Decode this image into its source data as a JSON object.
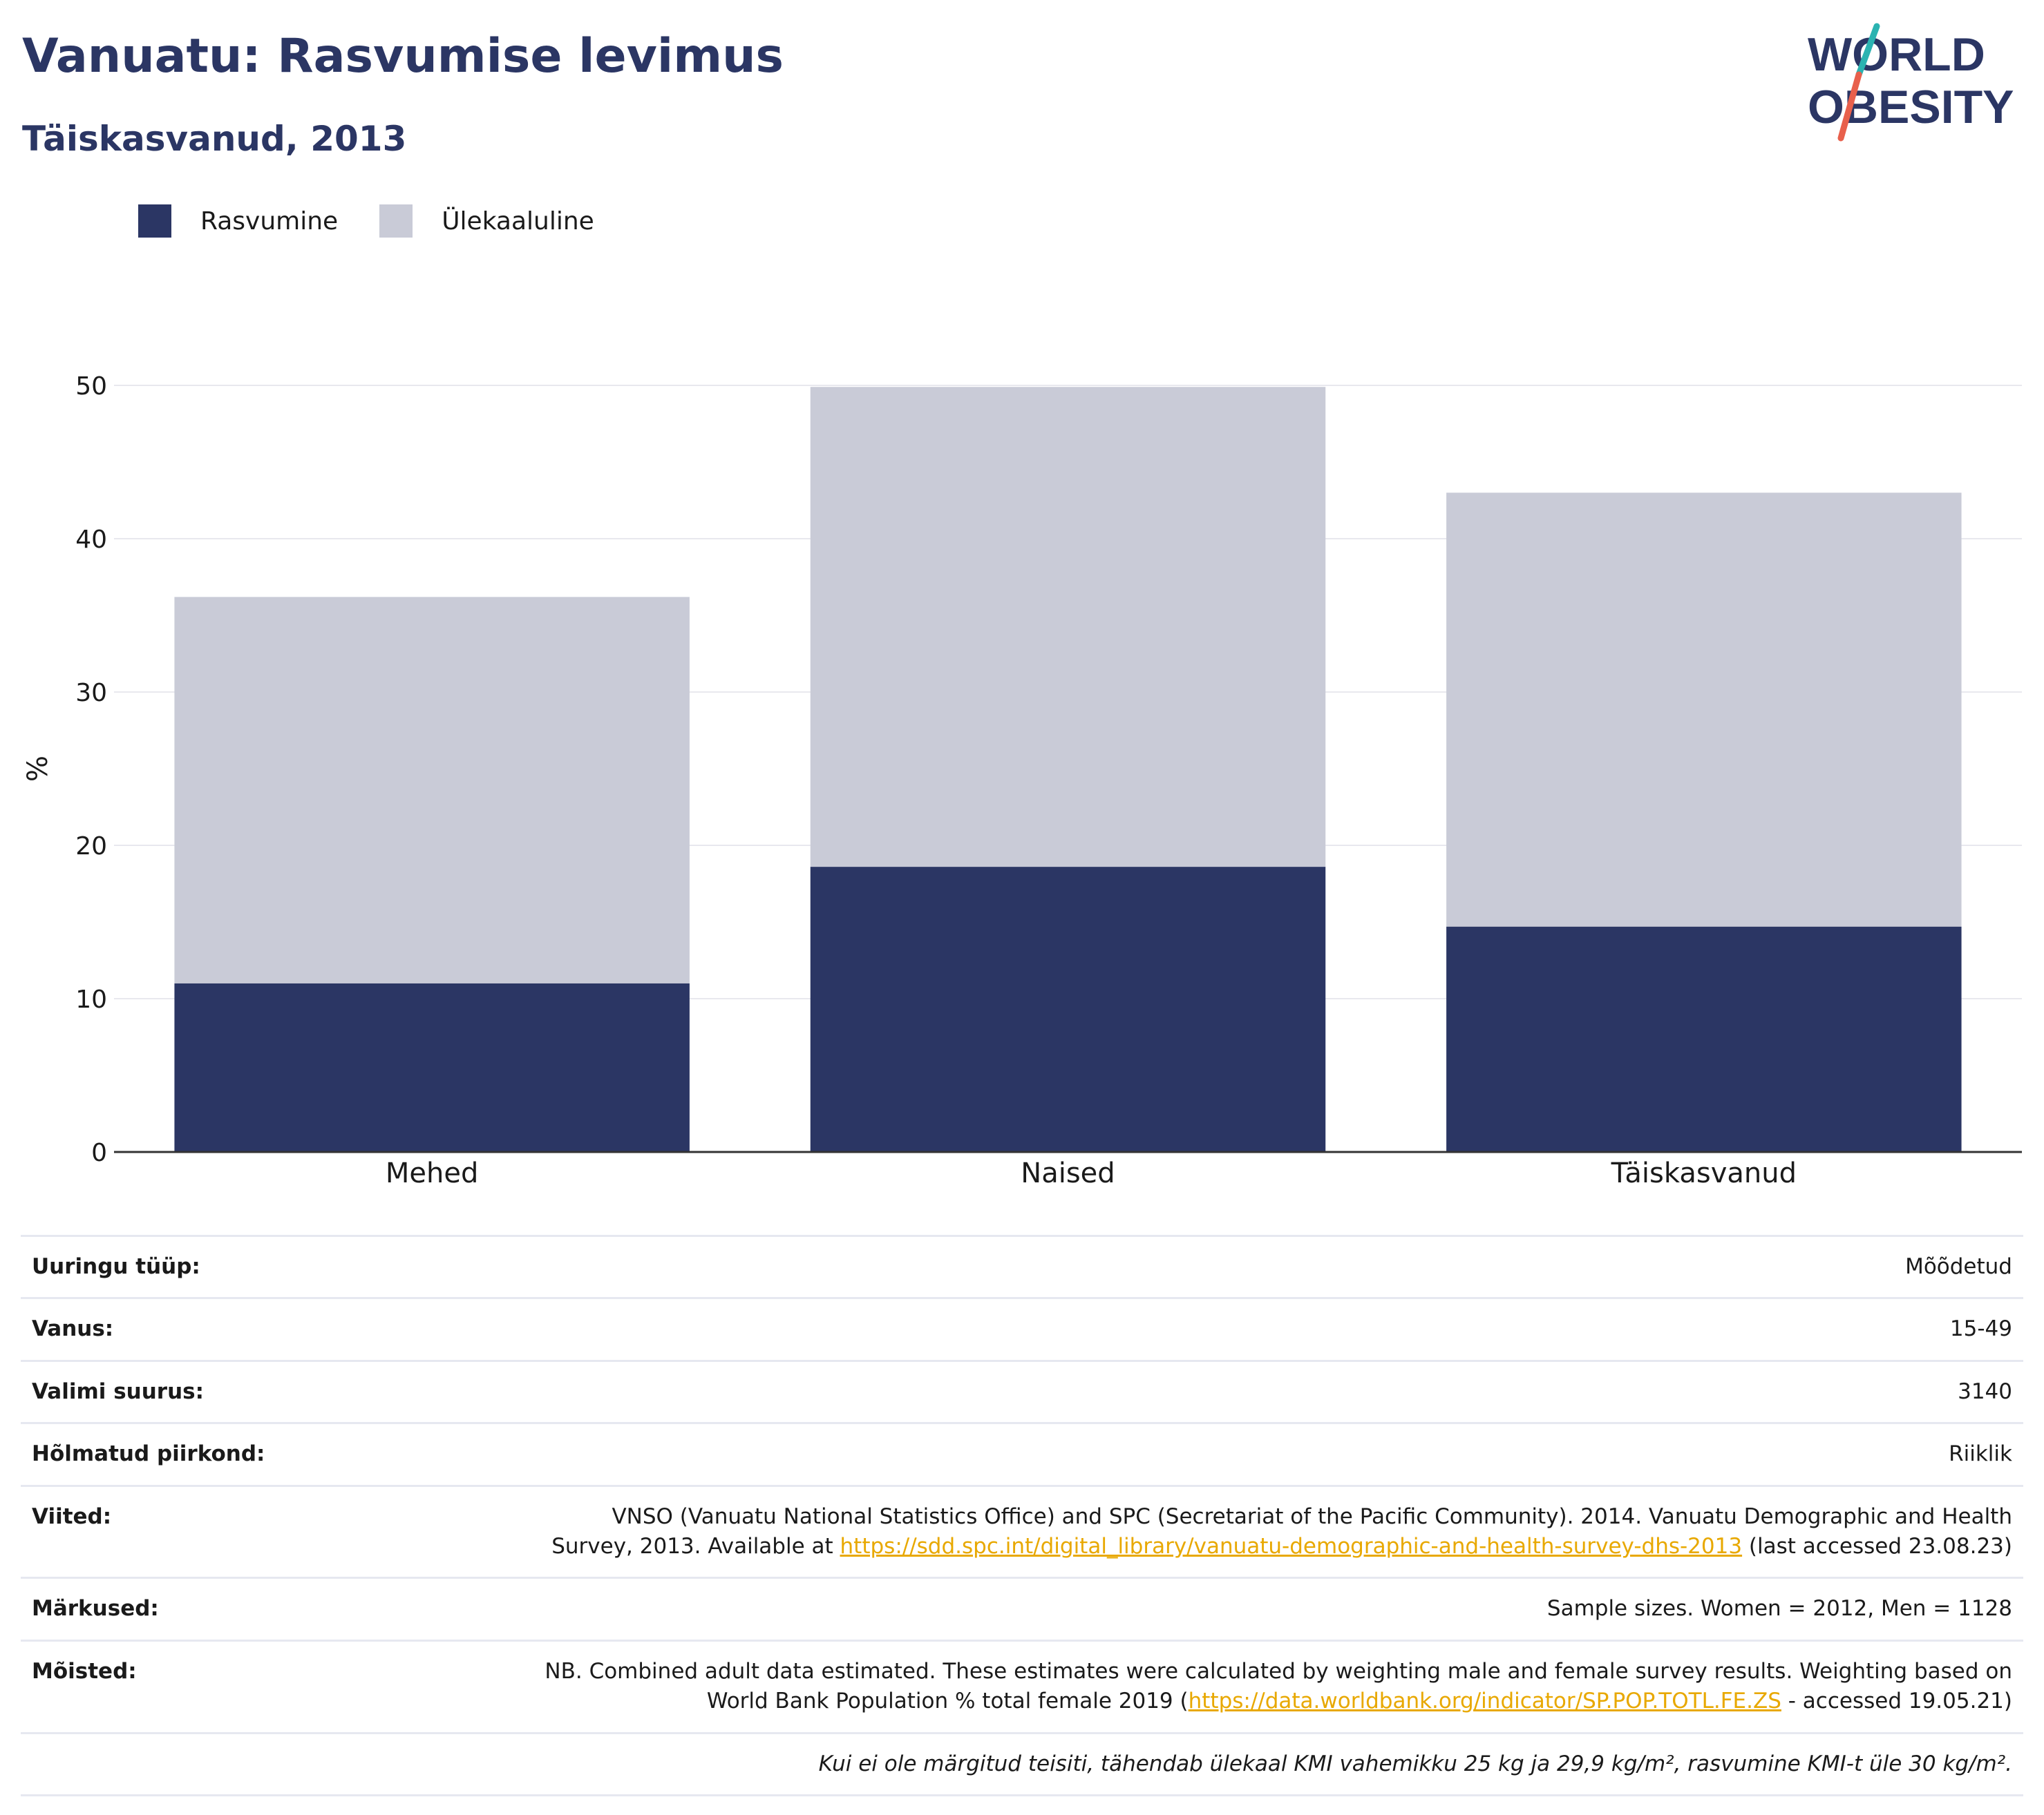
{
  "header": {
    "title": "Vanuatu: Rasvumise levimus",
    "subtitle": "Täiskasvanud, 2013",
    "logo_text_top": "WORLD",
    "logo_text_bottom": "OBESITY"
  },
  "colors": {
    "obesity": "#2b3664",
    "overweight": "#c9cbd7",
    "title": "#2b3664",
    "link": "#e8a800",
    "logo_teal": "#2bb3b1",
    "logo_red": "#e8604c"
  },
  "chart_data": {
    "type": "bar",
    "stacked": true,
    "categories": [
      "Mehed",
      "Naised",
      "Täiskasvanud"
    ],
    "series": [
      {
        "name": "Rasvumine",
        "values": [
          11.0,
          18.6,
          14.7
        ]
      },
      {
        "name": "Ülekaaluline",
        "values": [
          25.2,
          31.3,
          28.3
        ]
      }
    ],
    "totals": [
      36.2,
      49.9,
      43.0
    ],
    "ylabel": "%",
    "ylim": [
      0,
      50
    ],
    "yticks": [
      0,
      10,
      20,
      30,
      40,
      50
    ],
    "grid": true,
    "legend": "top-left"
  },
  "info": {
    "survey_type": {
      "label": "Uuringu tüüp:",
      "value": "Mõõdetud"
    },
    "age": {
      "label": "Vanus:",
      "value": "15-49"
    },
    "sample_size": {
      "label": "Valimi suurus:",
      "value": "3140"
    },
    "area": {
      "label": "Hõlmatud piirkond:",
      "value": "Riiklik"
    },
    "references": {
      "label": "Viited:",
      "text_before": "VNSO (Vanuatu National Statistics Office) and SPC (Secretariat of the Pacific Community). 2014. Vanuatu Demographic and Health Survey, 2013. Available at ",
      "link": "https://sdd.spc.int/digital_library/vanuatu-demographic-and-health-survey-dhs-2013",
      "text_after": " (last accessed 23.08.23)"
    },
    "notes": {
      "label": "Märkused:",
      "value": "Sample sizes. Women = 2012, Men = 1128"
    },
    "definitions": {
      "label": "Mõisted:",
      "text_before": "NB. Combined adult data estimated. These estimates were calculated by weighting male and female survey results. Weighting based on World Bank Population % total female 2019 (",
      "link": "https://data.worldbank.org/indicator/SP.POP.TOTL.FE.ZS",
      "text_after": " - accessed 19.05.21)"
    },
    "footnote": "Kui ei ole märgitud teisiti, tähendab ülekaal KMI vahemikku 25 kg ja 29,9 kg/m², rasvumine KMI-t üle 30 kg/m²."
  }
}
